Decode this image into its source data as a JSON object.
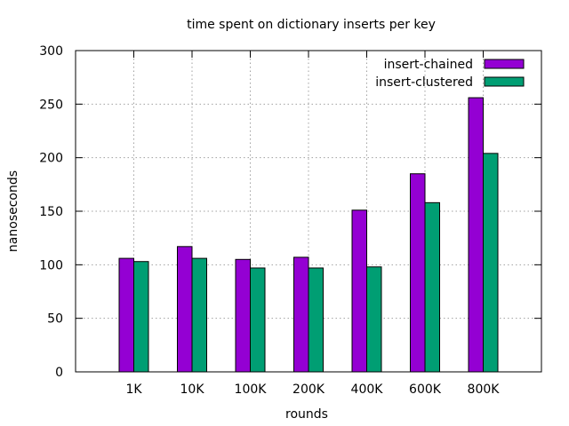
{
  "chart_data": {
    "type": "bar",
    "title": "time spent on dictionary inserts per key",
    "xlabel": "rounds",
    "ylabel": "nanoseconds",
    "categories": [
      "1K",
      "10K",
      "100K",
      "200K",
      "400K",
      "600K",
      "800K"
    ],
    "ylim": [
      0,
      300
    ],
    "yticks": [
      0,
      50,
      100,
      150,
      200,
      250,
      300
    ],
    "grid": true,
    "legend_position": "top-right",
    "series": [
      {
        "name": "insert-chained",
        "color": "#9400d3",
        "values": [
          106,
          117,
          105,
          107,
          151,
          185,
          256
        ]
      },
      {
        "name": "insert-clustered",
        "color": "#009e73",
        "values": [
          103,
          106,
          97,
          97,
          98,
          158,
          204
        ]
      }
    ]
  }
}
